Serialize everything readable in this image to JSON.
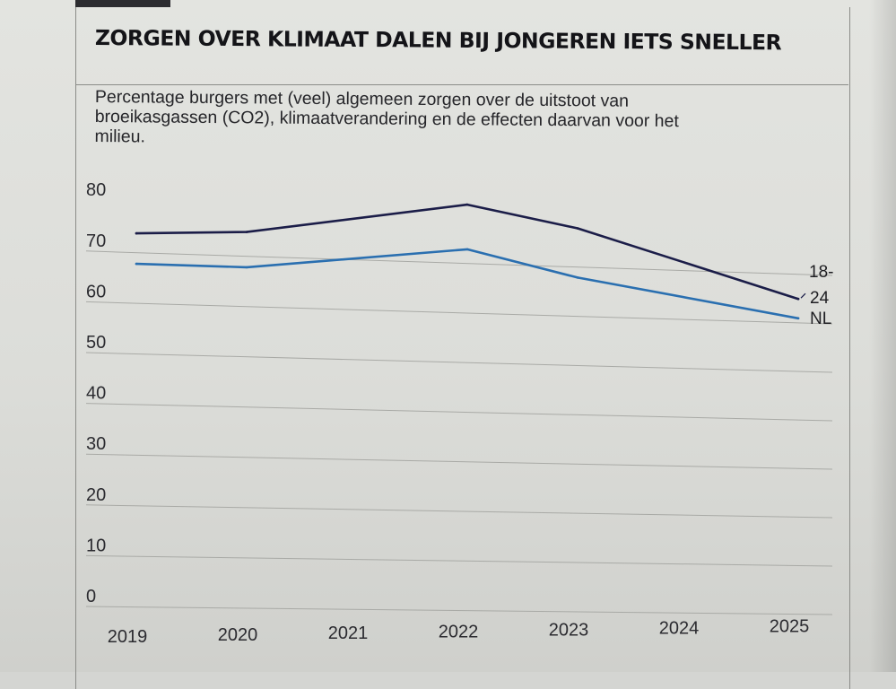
{
  "title": "ZORGEN OVER KLIMAAT DALEN BIJ JONGEREN IETS SNELLER",
  "subtitle": [
    "Percentage burgers met (veel) algemeen zorgen over de uitstoot van",
    "broeikasgassen (CO2), klimaatverandering en de effecten daarvan voor het",
    "milieu."
  ],
  "chart_data": {
    "type": "line",
    "title": "ZORGEN OVER KLIMAAT DALEN BIJ JONGEREN IETS SNELLER",
    "xlabel": "",
    "ylabel": "",
    "x": [
      2019,
      2020,
      2021,
      2022,
      2023,
      2024,
      2025
    ],
    "x_tick_labels": [
      "2019",
      "2020",
      "2021",
      "2022",
      "2023",
      "2024",
      "2025"
    ],
    "y_ticks": [
      0,
      10,
      20,
      30,
      40,
      50,
      60,
      70,
      80
    ],
    "ylim": [
      0,
      80
    ],
    "grid": true,
    "series": [
      {
        "name": "18-24",
        "label_lines": [
          "18-",
          "24"
        ],
        "color": "#1b1d48",
        "x": [
          2019,
          2020,
          2022,
          2023,
          2025
        ],
        "values": [
          71,
          72,
          79,
          75,
          62
        ]
      },
      {
        "name": "NL",
        "label_lines": [
          "NL"
        ],
        "color": "#2a6fb0",
        "x": [
          2019,
          2020,
          2022,
          2023,
          2025
        ],
        "values": [
          65,
          65,
          70,
          65,
          58
        ]
      }
    ]
  },
  "colors": {
    "grid": "#a9aaa6",
    "axis_text": "#2b2b30"
  }
}
